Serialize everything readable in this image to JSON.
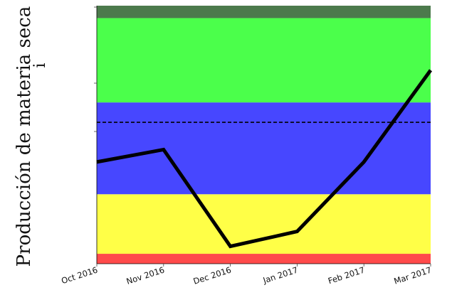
{
  "chart_data": {
    "type": "line",
    "title": "",
    "xlabel": "",
    "ylabel": "Producción de materia seca",
    "ylabel_sub": "i",
    "categories": [
      "Oct 2016",
      "Nov 2016",
      "Dec 2016",
      "Jan 2017",
      "Feb 2017",
      "Mar 2017"
    ],
    "series": [
      {
        "values": [
          37,
          42,
          3,
          9,
          37,
          74
        ],
        "color": "#000000"
      }
    ],
    "ylim": [
      -4,
      100
    ],
    "reference_line": {
      "value": 53,
      "style": "dashed",
      "color": "#000000"
    },
    "bands": [
      {
        "from": -4,
        "to": 0,
        "color": "#ff4b4b"
      },
      {
        "from": 0,
        "to": 24,
        "color": "#ffff47"
      },
      {
        "from": 24,
        "to": 61,
        "color": "#4747ff"
      },
      {
        "from": 61,
        "to": 95,
        "color": "#4bff4b"
      },
      {
        "from": 95,
        "to": 100,
        "color": "#4c7a4c"
      }
    ],
    "grid": false,
    "legend": "none"
  }
}
